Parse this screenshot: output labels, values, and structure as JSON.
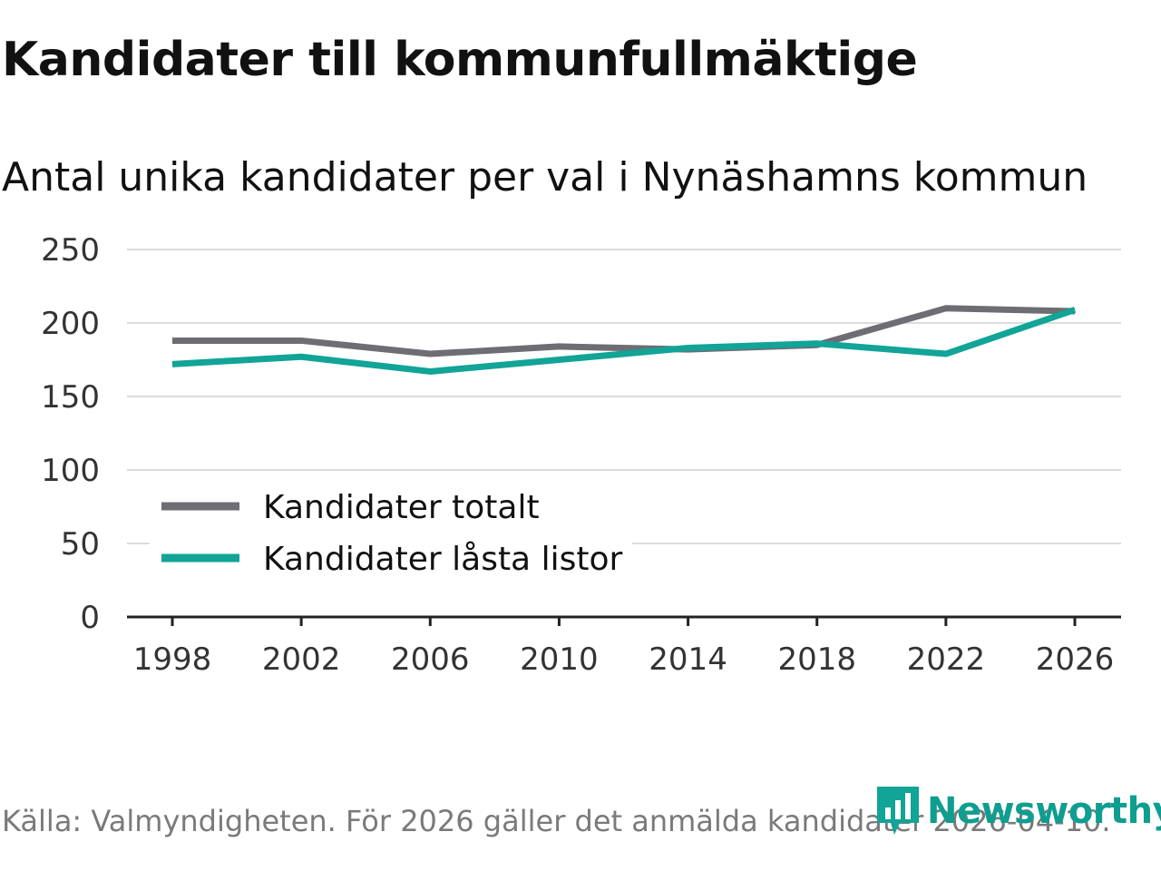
{
  "title": "Kandidater till kommunfullmäktige",
  "subtitle": "Antal unika kandidater per val i Nynäshamns kommun",
  "footer": "Källa: Valmyndigheten. För 2026 gäller det anmälda kandidater 2026-04-10.",
  "brand": "Newsworthy",
  "colors": {
    "totalt": "#6e6d74",
    "lasta": "#11a497",
    "brand": "#0e9e90"
  },
  "chart_data": {
    "type": "line",
    "title": "Kandidater till kommunfullmäktige",
    "subtitle": "Antal unika kandidater per val i Nynäshamns kommun",
    "xlabel": "",
    "ylabel": "",
    "categories": [
      "1998",
      "2002",
      "2006",
      "2010",
      "2014",
      "2018",
      "2022",
      "2026"
    ],
    "ylim": [
      0,
      250
    ],
    "yticks": [
      0,
      50,
      100,
      150,
      200,
      250
    ],
    "grid": true,
    "legend_position": "bottom-left",
    "series": [
      {
        "name": "Kandidater totalt",
        "color": "#6e6d74",
        "values": [
          188,
          188,
          179,
          184,
          182,
          185,
          210,
          208
        ]
      },
      {
        "name": "Kandidater låsta listor",
        "color": "#11a497",
        "values": [
          172,
          177,
          167,
          175,
          183,
          186,
          179,
          209
        ]
      }
    ]
  }
}
